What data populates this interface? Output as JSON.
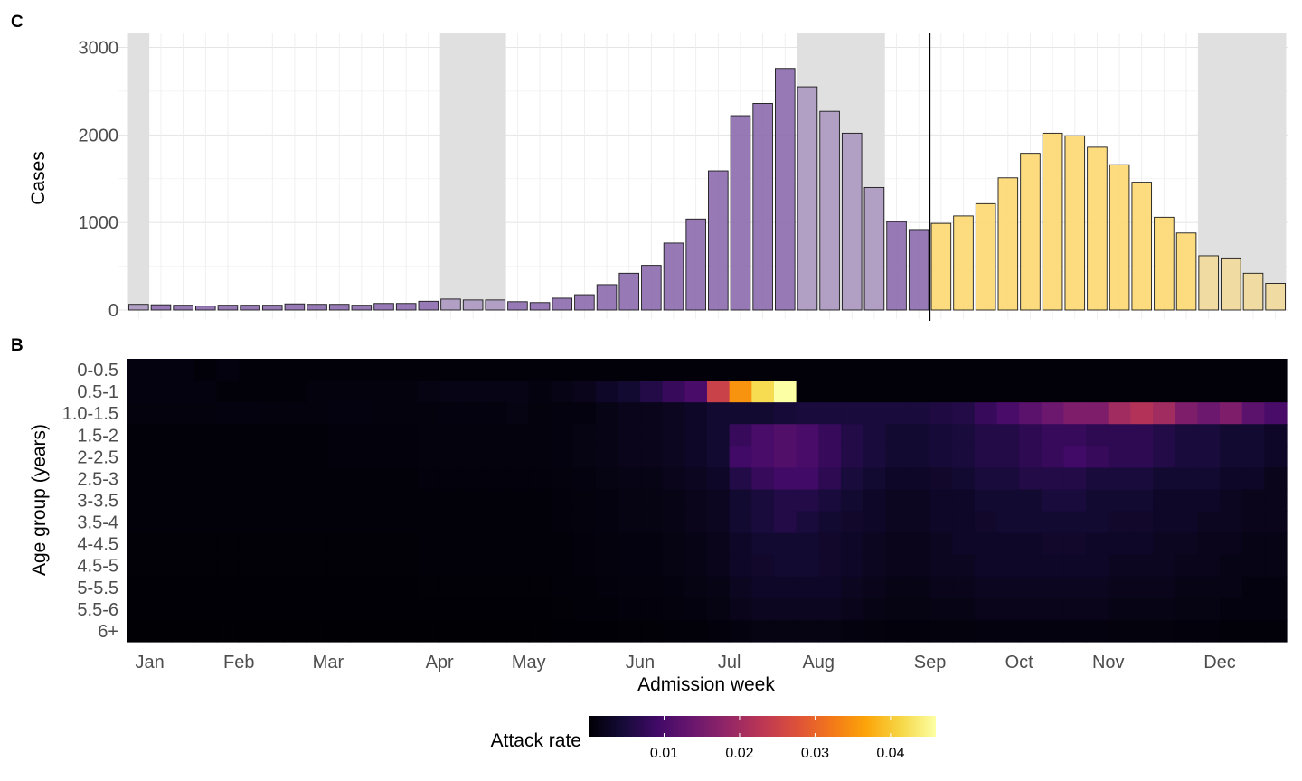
{
  "chart_data": [
    {
      "type": "bar",
      "panel_label": "C",
      "ylabel": "Cases",
      "ylim": [
        0,
        3000
      ],
      "yticks": [
        0,
        1000,
        2000,
        3000
      ],
      "grid": true,
      "x_unit": "week",
      "weeks": [
        1,
        2,
        3,
        4,
        5,
        6,
        7,
        8,
        9,
        10,
        11,
        12,
        13,
        14,
        15,
        16,
        17,
        18,
        19,
        20,
        21,
        22,
        23,
        24,
        25,
        26,
        27,
        28,
        29,
        30,
        31,
        32,
        33,
        34,
        35,
        36,
        37,
        38,
        39,
        40,
        41,
        42,
        43,
        44,
        45,
        46,
        47,
        48,
        49,
        50,
        51,
        52
      ],
      "values": [
        65,
        60,
        55,
        45,
        55,
        55,
        55,
        70,
        65,
        65,
        55,
        75,
        75,
        100,
        125,
        115,
        115,
        95,
        85,
        135,
        175,
        290,
        420,
        510,
        765,
        1040,
        1590,
        2220,
        2360,
        2760,
        2550,
        2270,
        2020,
        1400,
        1010,
        920,
        990,
        1075,
        1215,
        1510,
        1790,
        2020,
        1990,
        1860,
        1660,
        1460,
        1060,
        880,
        620,
        595,
        420,
        305
      ],
      "series": [
        {
          "name": "",
          "color": "#8b6aad",
          "from_week": 1,
          "to_week": 36
        },
        {
          "name": "",
          "color": "#fdd871",
          "from_week": 37,
          "to_week": 52
        }
      ],
      "shaded_week_ranges": [
        [
          1,
          1
        ],
        [
          15,
          17
        ],
        [
          31,
          34
        ],
        [
          49,
          52
        ]
      ],
      "vertical_line_week": 36.5
    },
    {
      "type": "heatmap",
      "panel_label": "B",
      "xlabel": "Admission week",
      "ylabel": "Age group (years)",
      "x_tick_labels": [
        "Jan",
        "Feb",
        "Mar",
        "Apr",
        "May",
        "Jun",
        "Jul",
        "Aug",
        "Sep",
        "Oct",
        "Nov",
        "Dec"
      ],
      "x_tick_weeks": [
        1.5,
        5.5,
        9.5,
        14.5,
        18.5,
        23.5,
        27.5,
        31.5,
        36.5,
        40.5,
        44.5,
        49.5
      ],
      "age_groups": [
        "0-0.5",
        "0.5-1",
        "1.0-1.5",
        "1.5-2",
        "2-2.5",
        "2.5-3",
        "3-3.5",
        "3.5-4",
        "4-4.5",
        "4.5-5",
        "5-5.5",
        "5.5-6",
        "6+"
      ],
      "colorscale": "inferno",
      "legend_title": "Attack rate",
      "legend_ticks": [
        0.01,
        0.02,
        0.03,
        0.04
      ],
      "value_range": [
        0,
        0.046
      ],
      "legend_position": "bottom",
      "peak_week": [
        28,
        31
      ],
      "values": [
        [
          0.001,
          0.001,
          0.001,
          0.0005,
          0.001,
          0.0005,
          0.0005,
          0.0005,
          0.0005,
          0.0005,
          0.0005,
          0.0005,
          0.0005,
          0.0005,
          0.0005,
          0.0005,
          0.0005,
          0.0005,
          0.0005,
          0.0005,
          0.0005,
          0.0005,
          0.0005,
          0.0005,
          0.0005,
          0.0005,
          0.0005,
          0.0005,
          0.0005,
          0.0005,
          0.0005,
          0.0005,
          0.0005,
          0.0005,
          0.0005,
          0.0005,
          0.0005,
          0.0005,
          0.0005,
          0.0005,
          0.0005,
          0.0005,
          0.0005,
          0.0005,
          0.0005,
          0.0005,
          0.0005,
          0.0005,
          0.0005,
          0.0005,
          0.0005,
          0.0005
        ],
        [
          0.001,
          0.001,
          0.001,
          0.001,
          0.0005,
          0.0005,
          0.0005,
          0.0005,
          0.0008,
          0.0008,
          0.0008,
          0.0008,
          0.0008,
          0.0012,
          0.0015,
          0.0015,
          0.0015,
          0.0015,
          0.001,
          0.0015,
          0.002,
          0.003,
          0.004,
          0.006,
          0.008,
          0.01,
          0.025,
          0.035,
          0.042,
          0.046,
          0.0005,
          0.0005,
          0.0005,
          0.0005,
          0.0005,
          0.0005,
          0.0005,
          0.0005,
          0.0005,
          0.0005,
          0.0005,
          0.0005,
          0.0005,
          0.0005,
          0.0005,
          0.0005,
          0.0005,
          0.0005,
          0.0005,
          0.0005,
          0.0005,
          0.0005
        ],
        [
          0.0008,
          0.0008,
          0.0008,
          0.0008,
          0.001,
          0.001,
          0.0008,
          0.0008,
          0.0008,
          0.001,
          0.001,
          0.0008,
          0.0008,
          0.0008,
          0.001,
          0.001,
          0.001,
          0.0012,
          0.0008,
          0.001,
          0.001,
          0.0015,
          0.002,
          0.002,
          0.0025,
          0.003,
          0.004,
          0.004,
          0.004,
          0.0045,
          0.005,
          0.005,
          0.005,
          0.005,
          0.005,
          0.005,
          0.0055,
          0.006,
          0.008,
          0.01,
          0.012,
          0.014,
          0.016,
          0.016,
          0.02,
          0.022,
          0.02,
          0.016,
          0.014,
          0.016,
          0.012,
          0.01
        ],
        [
          0.0005,
          0.0005,
          0.0005,
          0.0005,
          0.0005,
          0.0005,
          0.0005,
          0.0005,
          0.0005,
          0.0006,
          0.0006,
          0.0006,
          0.0006,
          0.0008,
          0.0008,
          0.0008,
          0.0008,
          0.0008,
          0.0008,
          0.001,
          0.0012,
          0.0015,
          0.002,
          0.002,
          0.0025,
          0.003,
          0.004,
          0.008,
          0.01,
          0.011,
          0.01,
          0.008,
          0.006,
          0.005,
          0.004,
          0.004,
          0.0045,
          0.005,
          0.006,
          0.006,
          0.007,
          0.008,
          0.008,
          0.007,
          0.007,
          0.007,
          0.006,
          0.005,
          0.005,
          0.004,
          0.004,
          0.003
        ],
        [
          0.0005,
          0.0005,
          0.0005,
          0.0005,
          0.0005,
          0.0005,
          0.0005,
          0.0005,
          0.0005,
          0.0006,
          0.0006,
          0.0006,
          0.0006,
          0.0008,
          0.0008,
          0.0008,
          0.0008,
          0.0008,
          0.0008,
          0.001,
          0.0012,
          0.0015,
          0.002,
          0.002,
          0.0025,
          0.003,
          0.004,
          0.009,
          0.01,
          0.011,
          0.01,
          0.008,
          0.006,
          0.005,
          0.004,
          0.004,
          0.0045,
          0.005,
          0.006,
          0.006,
          0.007,
          0.008,
          0.009,
          0.008,
          0.007,
          0.007,
          0.006,
          0.005,
          0.005,
          0.004,
          0.004,
          0.003
        ],
        [
          0.0005,
          0.0005,
          0.0005,
          0.0005,
          0.0005,
          0.0005,
          0.0005,
          0.0005,
          0.0005,
          0.0005,
          0.0005,
          0.0005,
          0.0005,
          0.0006,
          0.0006,
          0.0006,
          0.0006,
          0.0006,
          0.0006,
          0.0008,
          0.001,
          0.0012,
          0.0015,
          0.0015,
          0.002,
          0.0025,
          0.003,
          0.006,
          0.008,
          0.009,
          0.009,
          0.007,
          0.005,
          0.004,
          0.003,
          0.003,
          0.0035,
          0.004,
          0.005,
          0.005,
          0.006,
          0.006,
          0.006,
          0.005,
          0.005,
          0.005,
          0.004,
          0.004,
          0.004,
          0.003,
          0.003,
          0.002
        ],
        [
          0.0004,
          0.0004,
          0.0004,
          0.0004,
          0.0004,
          0.0004,
          0.0004,
          0.0004,
          0.0004,
          0.0004,
          0.0004,
          0.0004,
          0.0004,
          0.0005,
          0.0005,
          0.0005,
          0.0005,
          0.0005,
          0.0005,
          0.0006,
          0.0008,
          0.001,
          0.0012,
          0.0012,
          0.0015,
          0.002,
          0.0025,
          0.004,
          0.005,
          0.006,
          0.006,
          0.005,
          0.004,
          0.003,
          0.0025,
          0.0025,
          0.003,
          0.003,
          0.004,
          0.004,
          0.004,
          0.005,
          0.005,
          0.004,
          0.004,
          0.004,
          0.003,
          0.003,
          0.003,
          0.0025,
          0.002,
          0.002
        ],
        [
          0.0004,
          0.0004,
          0.0004,
          0.0004,
          0.0004,
          0.0004,
          0.0004,
          0.0004,
          0.0004,
          0.0004,
          0.0004,
          0.0004,
          0.0004,
          0.0005,
          0.0005,
          0.0005,
          0.0005,
          0.0005,
          0.0005,
          0.0006,
          0.0008,
          0.001,
          0.0012,
          0.0012,
          0.0015,
          0.002,
          0.0025,
          0.004,
          0.005,
          0.006,
          0.005,
          0.004,
          0.0035,
          0.003,
          0.0025,
          0.0025,
          0.003,
          0.003,
          0.0035,
          0.004,
          0.004,
          0.004,
          0.004,
          0.004,
          0.0035,
          0.0035,
          0.003,
          0.003,
          0.0025,
          0.0025,
          0.002,
          0.002
        ],
        [
          0.0003,
          0.0003,
          0.0003,
          0.0003,
          0.0003,
          0.0003,
          0.0003,
          0.0003,
          0.0003,
          0.0003,
          0.0003,
          0.0003,
          0.0003,
          0.0004,
          0.0004,
          0.0004,
          0.0004,
          0.0004,
          0.0004,
          0.0005,
          0.0006,
          0.0008,
          0.001,
          0.001,
          0.0012,
          0.0015,
          0.002,
          0.003,
          0.004,
          0.004,
          0.004,
          0.0035,
          0.003,
          0.0025,
          0.002,
          0.002,
          0.0025,
          0.003,
          0.003,
          0.003,
          0.003,
          0.0035,
          0.0035,
          0.003,
          0.003,
          0.003,
          0.0025,
          0.0025,
          0.002,
          0.002,
          0.0015,
          0.0015
        ],
        [
          0.0003,
          0.0003,
          0.0003,
          0.0003,
          0.0003,
          0.0003,
          0.0003,
          0.0003,
          0.0003,
          0.0003,
          0.0003,
          0.0003,
          0.0003,
          0.0004,
          0.0004,
          0.0004,
          0.0004,
          0.0004,
          0.0004,
          0.0005,
          0.0006,
          0.0008,
          0.001,
          0.001,
          0.0012,
          0.0015,
          0.002,
          0.003,
          0.0035,
          0.004,
          0.004,
          0.0035,
          0.003,
          0.0025,
          0.002,
          0.002,
          0.0025,
          0.0025,
          0.003,
          0.003,
          0.003,
          0.003,
          0.003,
          0.003,
          0.0025,
          0.0025,
          0.0025,
          0.002,
          0.002,
          0.0015,
          0.0015,
          0.0015
        ],
        [
          0.0002,
          0.0002,
          0.0002,
          0.0002,
          0.0002,
          0.0002,
          0.0002,
          0.0002,
          0.0002,
          0.0002,
          0.0002,
          0.0002,
          0.0002,
          0.0003,
          0.0003,
          0.0003,
          0.0003,
          0.0003,
          0.0003,
          0.0004,
          0.0005,
          0.0006,
          0.0008,
          0.0008,
          0.001,
          0.0012,
          0.0015,
          0.0025,
          0.003,
          0.003,
          0.003,
          0.003,
          0.0025,
          0.002,
          0.0015,
          0.0015,
          0.002,
          0.002,
          0.0025,
          0.0025,
          0.0025,
          0.0025,
          0.0025,
          0.0025,
          0.002,
          0.002,
          0.002,
          0.0015,
          0.0015,
          0.0015,
          0.001,
          0.001
        ],
        [
          0.0002,
          0.0002,
          0.0002,
          0.0002,
          0.0002,
          0.0002,
          0.0002,
          0.0002,
          0.0002,
          0.0002,
          0.0002,
          0.0002,
          0.0002,
          0.0002,
          0.0002,
          0.0002,
          0.0002,
          0.0002,
          0.0002,
          0.0003,
          0.0004,
          0.0005,
          0.0006,
          0.0006,
          0.0008,
          0.001,
          0.0012,
          0.002,
          0.0025,
          0.0025,
          0.0025,
          0.0025,
          0.002,
          0.0015,
          0.0012,
          0.0012,
          0.0015,
          0.0015,
          0.002,
          0.002,
          0.002,
          0.002,
          0.002,
          0.002,
          0.0015,
          0.0015,
          0.0015,
          0.0012,
          0.0012,
          0.001,
          0.001,
          0.001
        ],
        [
          0.0001,
          0.0001,
          0.0001,
          0.0001,
          0.0001,
          0.0001,
          0.0001,
          0.0001,
          0.0001,
          0.0001,
          0.0001,
          0.0001,
          0.0001,
          0.0001,
          0.0001,
          0.0001,
          0.0001,
          0.0001,
          0.0001,
          0.0002,
          0.0002,
          0.0002,
          0.0003,
          0.0003,
          0.0004,
          0.0005,
          0.0006,
          0.001,
          0.0012,
          0.0012,
          0.0012,
          0.0012,
          0.001,
          0.0008,
          0.0006,
          0.0006,
          0.0008,
          0.0008,
          0.001,
          0.001,
          0.001,
          0.001,
          0.001,
          0.001,
          0.0008,
          0.0008,
          0.0008,
          0.0006,
          0.0006,
          0.0005,
          0.0005,
          0.0005
        ]
      ]
    }
  ]
}
